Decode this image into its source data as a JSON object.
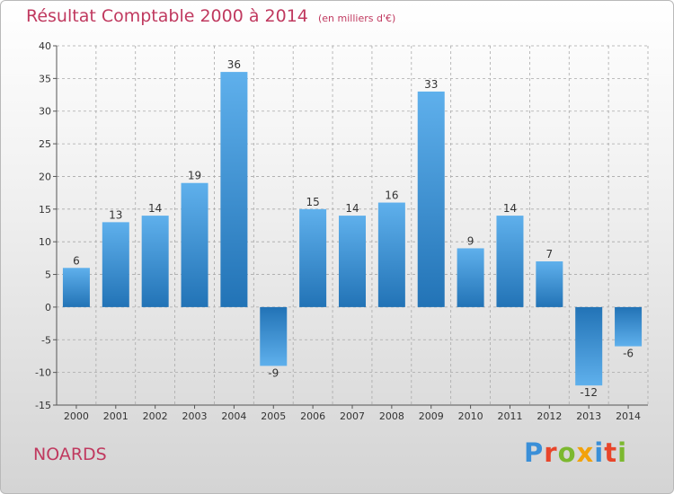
{
  "title": "Résultat Comptable 2000 à 2014",
  "unit_note": "(en milliers d'€)",
  "commune": "NOARDS",
  "logo": {
    "letters": [
      "P",
      "r",
      "o",
      "x",
      "i",
      "t",
      "i"
    ],
    "colors": [
      "#3a8fd8",
      "#e8452a",
      "#7cb82f",
      "#f2a20c",
      "#3a8fd8",
      "#e8452a",
      "#7cb82f"
    ]
  },
  "colors": {
    "bar_light": "#5fb0ec",
    "bar_dark": "#2273b6",
    "title": "#c0395f",
    "grid": "#a9a9a9"
  },
  "chart_data": {
    "type": "bar",
    "title": "Résultat Comptable 2000 à 2014",
    "xlabel": "",
    "ylabel": "",
    "ylim": [
      -15,
      40
    ],
    "yticks": [
      -15,
      -10,
      -5,
      0,
      5,
      10,
      15,
      20,
      25,
      30,
      35,
      40
    ],
    "grid": true,
    "categories": [
      "2000",
      "2001",
      "2002",
      "2003",
      "2004",
      "2005",
      "2006",
      "2007",
      "2008",
      "2009",
      "2010",
      "2011",
      "2012",
      "2013",
      "2014"
    ],
    "values": [
      6,
      13,
      14,
      19,
      36,
      -9,
      15,
      14,
      16,
      33,
      9,
      14,
      7,
      -12,
      -6
    ],
    "labels": [
      "6",
      "13",
      "14",
      "19",
      "36",
      "-9",
      "15",
      "14",
      "16",
      "33",
      "9",
      "14",
      "7",
      "-12",
      "-6"
    ]
  }
}
